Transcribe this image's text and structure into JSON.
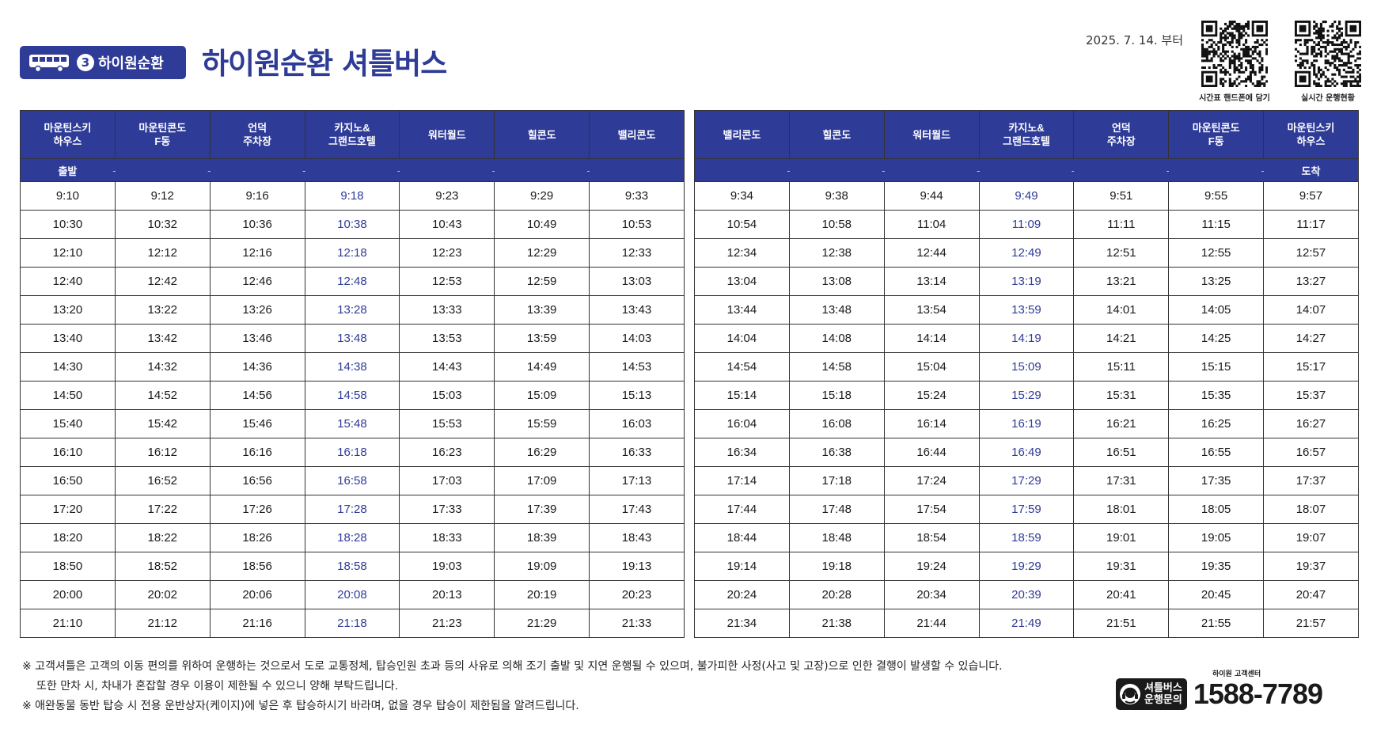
{
  "header": {
    "badge_number": "3",
    "badge_label": "하이원순환",
    "title": "하이원순환 셔틀버스",
    "effective_date": "2025. 7. 14. 부터"
  },
  "qr": [
    {
      "label": "시간표 핸드폰에 담기"
    },
    {
      "label": "실시간 운행현황"
    }
  ],
  "tables": [
    {
      "headers": [
        "마운틴스키\n하우스",
        "마운틴콘도\nF동",
        "언덕\n주차장",
        "카지노&\n그랜드호텔",
        "워터월드",
        "힐콘도",
        "밸리콘도"
      ],
      "start_label": "출발",
      "end_label": "",
      "arrow": "→",
      "casino_col": 3,
      "rows": [
        [
          "9:10",
          "9:12",
          "9:16",
          "9:18",
          "9:23",
          "9:29",
          "9:33"
        ],
        [
          "10:30",
          "10:32",
          "10:36",
          "10:38",
          "10:43",
          "10:49",
          "10:53"
        ],
        [
          "12:10",
          "12:12",
          "12:16",
          "12:18",
          "12:23",
          "12:29",
          "12:33"
        ],
        [
          "12:40",
          "12:42",
          "12:46",
          "12:48",
          "12:53",
          "12:59",
          "13:03"
        ],
        [
          "13:20",
          "13:22",
          "13:26",
          "13:28",
          "13:33",
          "13:39",
          "13:43"
        ],
        [
          "13:40",
          "13:42",
          "13:46",
          "13:48",
          "13:53",
          "13:59",
          "14:03"
        ],
        [
          "14:30",
          "14:32",
          "14:36",
          "14:38",
          "14:43",
          "14:49",
          "14:53"
        ],
        [
          "14:50",
          "14:52",
          "14:56",
          "14:58",
          "15:03",
          "15:09",
          "15:13"
        ],
        [
          "15:40",
          "15:42",
          "15:46",
          "15:48",
          "15:53",
          "15:59",
          "16:03"
        ],
        [
          "16:10",
          "16:12",
          "16:16",
          "16:18",
          "16:23",
          "16:29",
          "16:33"
        ],
        [
          "16:50",
          "16:52",
          "16:56",
          "16:58",
          "17:03",
          "17:09",
          "17:13"
        ],
        [
          "17:20",
          "17:22",
          "17:26",
          "17:28",
          "17:33",
          "17:39",
          "17:43"
        ],
        [
          "18:20",
          "18:22",
          "18:26",
          "18:28",
          "18:33",
          "18:39",
          "18:43"
        ],
        [
          "18:50",
          "18:52",
          "18:56",
          "18:58",
          "19:03",
          "19:09",
          "19:13"
        ],
        [
          "20:00",
          "20:02",
          "20:06",
          "20:08",
          "20:13",
          "20:19",
          "20:23"
        ],
        [
          "21:10",
          "21:12",
          "21:16",
          "21:18",
          "21:23",
          "21:29",
          "21:33"
        ]
      ]
    },
    {
      "headers": [
        "밸리콘도",
        "힐콘도",
        "워터월드",
        "카지노&\n그랜드호텔",
        "언덕\n주차장",
        "마운틴콘도\nF동",
        "마운틴스키\n하우스"
      ],
      "start_label": "",
      "end_label": "도착",
      "arrow": "→",
      "casino_col": 3,
      "rows": [
        [
          "9:34",
          "9:38",
          "9:44",
          "9:49",
          "9:51",
          "9:55",
          "9:57"
        ],
        [
          "10:54",
          "10:58",
          "11:04",
          "11:09",
          "11:11",
          "11:15",
          "11:17"
        ],
        [
          "12:34",
          "12:38",
          "12:44",
          "12:49",
          "12:51",
          "12:55",
          "12:57"
        ],
        [
          "13:04",
          "13:08",
          "13:14",
          "13:19",
          "13:21",
          "13:25",
          "13:27"
        ],
        [
          "13:44",
          "13:48",
          "13:54",
          "13:59",
          "14:01",
          "14:05",
          "14:07"
        ],
        [
          "14:04",
          "14:08",
          "14:14",
          "14:19",
          "14:21",
          "14:25",
          "14:27"
        ],
        [
          "14:54",
          "14:58",
          "15:04",
          "15:09",
          "15:11",
          "15:15",
          "15:17"
        ],
        [
          "15:14",
          "15:18",
          "15:24",
          "15:29",
          "15:31",
          "15:35",
          "15:37"
        ],
        [
          "16:04",
          "16:08",
          "16:14",
          "16:19",
          "16:21",
          "16:25",
          "16:27"
        ],
        [
          "16:34",
          "16:38",
          "16:44",
          "16:49",
          "16:51",
          "16:55",
          "16:57"
        ],
        [
          "17:14",
          "17:18",
          "17:24",
          "17:29",
          "17:31",
          "17:35",
          "17:37"
        ],
        [
          "17:44",
          "17:48",
          "17:54",
          "17:59",
          "18:01",
          "18:05",
          "18:07"
        ],
        [
          "18:44",
          "18:48",
          "18:54",
          "18:59",
          "19:01",
          "19:05",
          "19:07"
        ],
        [
          "19:14",
          "19:18",
          "19:24",
          "19:29",
          "19:31",
          "19:35",
          "19:37"
        ],
        [
          "20:24",
          "20:28",
          "20:34",
          "20:39",
          "20:41",
          "20:45",
          "20:47"
        ],
        [
          "21:34",
          "21:38",
          "21:44",
          "21:49",
          "21:51",
          "21:55",
          "21:57"
        ]
      ]
    }
  ],
  "notes": [
    "※ 고객셔틀은 고객의 이동 편의를 위하여 운행하는 것으로서 도로 교통정체, 탑승인원 초과 등의 사유로 의해 조기 출발 및 지연 운행될 수 있으며, 불가피한 사정(사고 및 고장)으로 인한 결행이 발생할 수 있습니다.",
    "    또한 만차 시, 차내가 혼잡할 경우 이용이 제한될 수 있으니 양해 부탁드립니다.",
    "※ 애완동물 동반 탑승 시 전용 운반상자(케이지)에 넣은 후 탑승하시기 바라며, 없을 경우 탑승이 제한됨을 알려드립니다."
  ],
  "contact": {
    "label_line1": "셔틀버스",
    "label_line2": "운행문의",
    "center_label": "하이원 고객센터",
    "phone": "1588-7789"
  },
  "colors": {
    "brand": "#2e3b97",
    "casino_text": "#2e3b97"
  }
}
